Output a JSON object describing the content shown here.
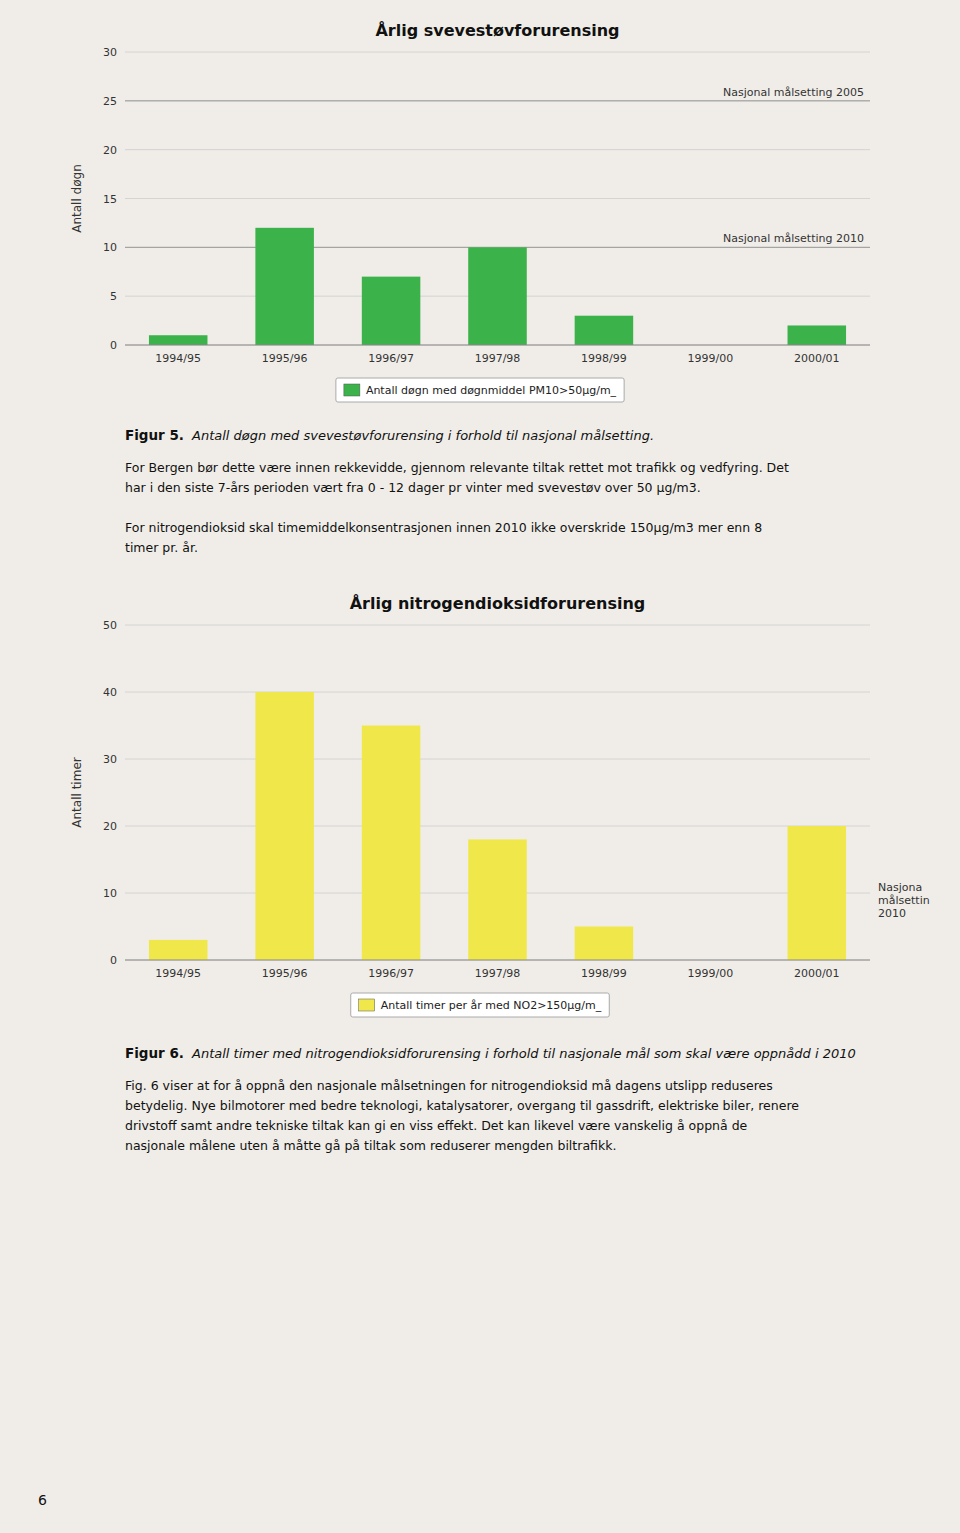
{
  "chart_data": [
    {
      "type": "bar",
      "title": "Årlig svevestøvforurensing",
      "categories": [
        "1994/95",
        "1995/96",
        "1996/97",
        "1997/98",
        "1998/99",
        "1999/00",
        "2000/01"
      ],
      "series": [
        {
          "name": "Antall døgn med døgnmiddel PM10>50µg/m_",
          "color": "#3cb34a",
          "values": [
            1,
            12,
            7,
            10,
            3,
            0,
            2
          ]
        }
      ],
      "ylabel": "Antall døgn",
      "ylim": [
        0,
        30
      ],
      "yticks": [
        0,
        5,
        10,
        15,
        20,
        25,
        30
      ],
      "grid": true,
      "legend": "bottom",
      "reference_lines": [
        {
          "y": 25,
          "label": "Nasjonal målsetting 2005"
        },
        {
          "y": 10,
          "label": "Nasjonal målsetting 2010"
        }
      ]
    },
    {
      "type": "bar",
      "title": "Årlig nitrogendioksidforurensing",
      "categories": [
        "1994/95",
        "1995/96",
        "1996/97",
        "1997/98",
        "1998/99",
        "1999/00",
        "2000/01"
      ],
      "series": [
        {
          "name": "Antall timer per år med NO2>150µg/m_",
          "color": "#f0e84a",
          "values": [
            3,
            40,
            35,
            18,
            5,
            0,
            20
          ]
        }
      ],
      "ylabel": "Antall timer",
      "ylim": [
        0,
        50
      ],
      "yticks": [
        0,
        10,
        20,
        30,
        40,
        50
      ],
      "grid": true,
      "legend": "bottom",
      "annotations": [
        {
          "text": "Nasjona\nmålsettin\n2010",
          "y": 9
        }
      ]
    }
  ],
  "captions": [
    {
      "label": "Figur 5.",
      "text": "Antall døgn med svevestøvforurensing i forhold til nasjonal målsetting."
    },
    {
      "label": "Figur 6.",
      "text": "Antall timer med nitrogendioksidforurensing i forhold til nasjonale mål som skal være oppnådd i 2010"
    }
  ],
  "body_texts": [
    "For Bergen bør dette være innen rekkevidde, gjennom relevante tiltak rettet mot trafikk og vedfyring. Det\nhar i den siste 7-års  perioden vært fra 0 - 12 dager pr vinter med svevestøv over 50 µg/m3.",
    "For nitrogendioksid skal timemiddelkonsentrasjonen innen 2010 ikke overskride 150µg/m3 mer enn 8\ntimer pr. år.",
    "Fig. 6 viser at for å oppnå den nasjonale målsetningen for nitrogendioksid må dagens utslipp reduseres\nbetydelig. Nye bilmotorer med bedre teknologi, katalysatorer, overgang til gassdrift, elektriske biler, renere\ndrivstoff samt andre tekniske tiltak kan gi en viss effekt. Det kan likevel være vanskelig å oppnå de\nnasjonale målene uten å måtte gå på tiltak som reduserer mengden biltrafikk."
  ],
  "page_number": "6",
  "background_color": "#f0ede8"
}
